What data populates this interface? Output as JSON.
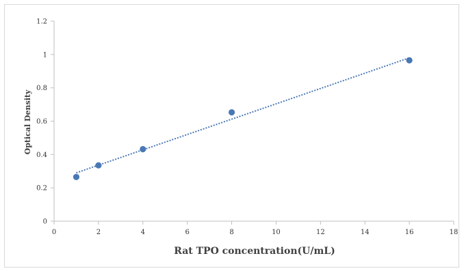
{
  "chart_data": {
    "type": "scatter",
    "title": "",
    "xlabel": "Rat TPO concentration(U/mL)",
    "ylabel": "Optical Density",
    "xlim": [
      0,
      18
    ],
    "ylim": [
      0,
      1.2
    ],
    "x_ticks": [
      "0",
      "2",
      "4",
      "6",
      "8",
      "10",
      "12",
      "14",
      "16",
      "18"
    ],
    "y_ticks": [
      "0",
      "0.2",
      "0.4",
      "0.6",
      "0.8",
      "1",
      "1.2"
    ],
    "grid": false,
    "legend": "none",
    "series": [
      {
        "x": [
          1,
          2,
          4,
          8,
          16
        ],
        "y": [
          0.265,
          0.335,
          0.432,
          0.653,
          0.965
        ],
        "color": "#4a78b5"
      }
    ],
    "trendline": {
      "type": "linear",
      "style": "dotted",
      "color": "#4a78b5",
      "x": [
        1,
        16
      ],
      "y": [
        0.29,
        0.98
      ]
    }
  }
}
